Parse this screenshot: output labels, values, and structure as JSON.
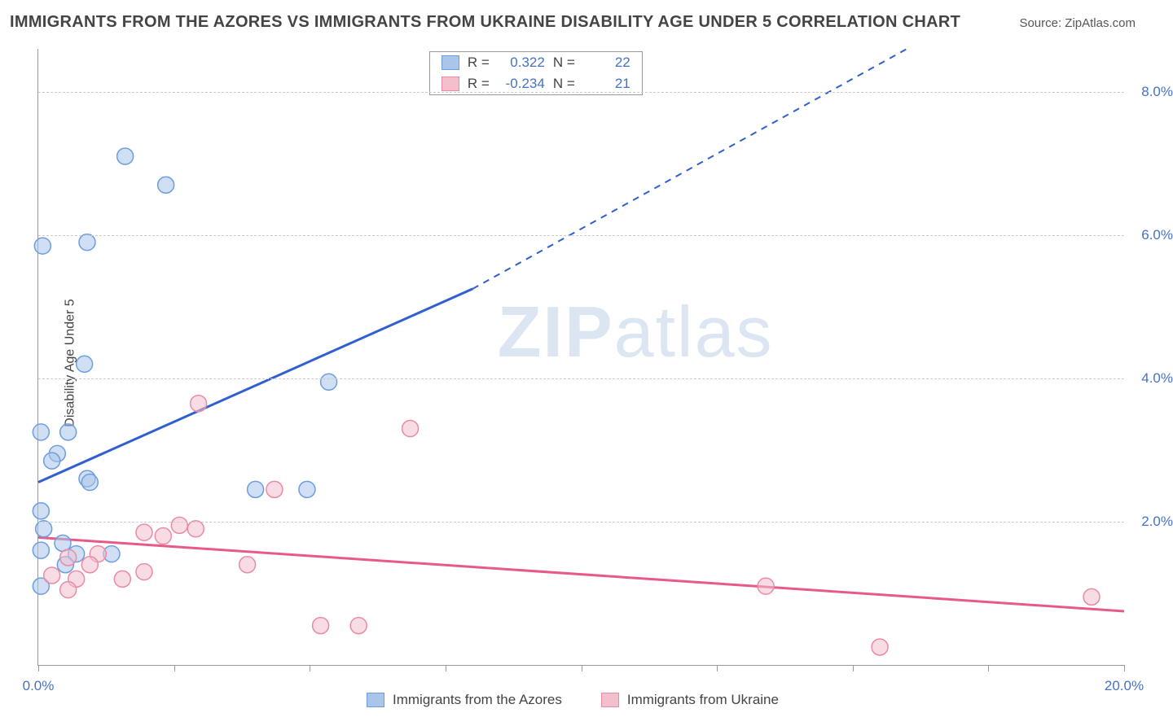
{
  "title": "IMMIGRANTS FROM THE AZORES VS IMMIGRANTS FROM UKRAINE DISABILITY AGE UNDER 5 CORRELATION CHART",
  "source": "Source: ZipAtlas.com",
  "ylabel": "Disability Age Under 5",
  "watermark_a": "ZIP",
  "watermark_b": "atlas",
  "chart": {
    "type": "scatter",
    "xlim": [
      0,
      20
    ],
    "ylim": [
      0,
      8.6
    ],
    "xticks": [
      0,
      2.5,
      5,
      7.5,
      10,
      12.5,
      15,
      17.5,
      20
    ],
    "xtick_labels": {
      "0": "0.0%",
      "20": "20.0%"
    },
    "yticks": [
      2,
      4,
      6,
      8
    ],
    "ytick_labels": {
      "2": "2.0%",
      "4": "4.0%",
      "6": "6.0%",
      "8": "8.0%"
    },
    "background_color": "#ffffff",
    "grid_color": "#cccccc",
    "axis_color": "#999999",
    "tick_label_color": "#4472c4",
    "marker_radius": 10,
    "line_width_solid": 3,
    "line_width_dashed": 2,
    "series": [
      {
        "key": "azores",
        "label": "Immigrants from the Azores",
        "fill": "#a9c5ea",
        "stroke": "#6c9de0",
        "line_color": "#2f5fd0",
        "R": "0.322",
        "N": "22",
        "points": [
          [
            0.08,
            5.85
          ],
          [
            0.9,
            5.9
          ],
          [
            1.6,
            7.1
          ],
          [
            2.35,
            6.7
          ],
          [
            0.85,
            4.2
          ],
          [
            0.05,
            3.25
          ],
          [
            0.55,
            3.25
          ],
          [
            0.35,
            2.95
          ],
          [
            0.25,
            2.85
          ],
          [
            0.9,
            2.6
          ],
          [
            0.95,
            2.55
          ],
          [
            0.05,
            2.15
          ],
          [
            4.0,
            2.45
          ],
          [
            4.95,
            2.45
          ],
          [
            5.35,
            3.95
          ],
          [
            0.1,
            1.9
          ],
          [
            0.45,
            1.7
          ],
          [
            0.05,
            1.6
          ],
          [
            0.7,
            1.55
          ],
          [
            1.35,
            1.55
          ],
          [
            0.05,
            1.1
          ],
          [
            0.5,
            1.4
          ]
        ],
        "regression": {
          "x1": 0,
          "y1": 2.55,
          "x_solid_end": 8.0,
          "y_solid_end": 5.25,
          "x2": 16.0,
          "y2": 8.6
        }
      },
      {
        "key": "ukraine",
        "label": "Immigrants from Ukraine",
        "fill": "#f3bfcd",
        "stroke": "#ea8aa5",
        "line_color": "#e75a88",
        "R": "-0.234",
        "N": "21",
        "points": [
          [
            2.95,
            3.65
          ],
          [
            6.85,
            3.3
          ],
          [
            4.35,
            2.45
          ],
          [
            1.95,
            1.85
          ],
          [
            2.6,
            1.95
          ],
          [
            2.9,
            1.9
          ],
          [
            2.3,
            1.8
          ],
          [
            1.1,
            1.55
          ],
          [
            0.55,
            1.5
          ],
          [
            0.95,
            1.4
          ],
          [
            1.95,
            1.3
          ],
          [
            3.85,
            1.4
          ],
          [
            0.25,
            1.25
          ],
          [
            0.7,
            1.2
          ],
          [
            1.55,
            1.2
          ],
          [
            0.55,
            1.05
          ],
          [
            13.4,
            1.1
          ],
          [
            5.2,
            0.55
          ],
          [
            5.9,
            0.55
          ],
          [
            15.5,
            0.25
          ],
          [
            19.4,
            0.95
          ]
        ],
        "regression": {
          "x1": 0,
          "y1": 1.78,
          "x_solid_end": 20,
          "y_solid_end": 0.75,
          "x2": 20,
          "y2": 0.75
        }
      }
    ]
  },
  "corr_legend": {
    "R_label": "R =",
    "N_label": "N ="
  },
  "bottom_legend": {}
}
